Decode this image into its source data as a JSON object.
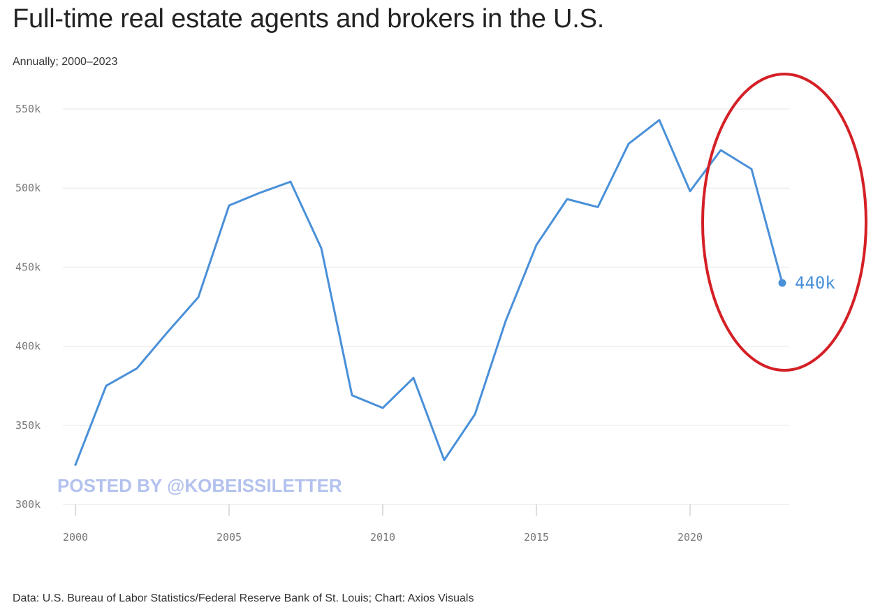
{
  "colors": {
    "line": "#4a90d9",
    "grid": "#e6e6e6",
    "annotation_circle": "#d42026",
    "watermark": "#b3c1ee"
  },
  "watermark_text": "POSTED BY @KOBEISSILETTER",
  "chart_data": {
    "type": "line",
    "title": "Full-time real estate agents and brokers in the U.S.",
    "subtitle": "Annually; 2000–2023",
    "source": "Data: U.S. Bureau of Labor Statistics/Federal Reserve Bank of St. Louis; Chart: Axios Visuals",
    "x": [
      2000,
      2001,
      2002,
      2003,
      2004,
      2005,
      2006,
      2007,
      2008,
      2009,
      2010,
      2011,
      2012,
      2013,
      2014,
      2015,
      2016,
      2017,
      2018,
      2019,
      2020,
      2021,
      2022,
      2023
    ],
    "values": [
      325,
      375,
      386,
      409,
      431,
      489,
      497,
      504,
      462,
      369,
      361,
      380,
      328,
      357,
      416,
      464,
      493,
      488,
      528,
      543,
      498,
      524,
      512,
      440
    ],
    "xlim": [
      2000,
      2023
    ],
    "ylim": [
      300,
      550
    ],
    "x_ticks": [
      2000,
      2005,
      2010,
      2015,
      2020
    ],
    "x_tick_labels": [
      "2000",
      "2005",
      "2010",
      "2015",
      "2020"
    ],
    "y_ticks": [
      300,
      350,
      400,
      450,
      500,
      550
    ],
    "y_tick_labels": [
      "300k",
      "350k",
      "400k",
      "450k",
      "500k",
      "550k"
    ],
    "end_label": "440k",
    "grid": true,
    "annotation": "red ellipse around 2021–2023 values"
  }
}
